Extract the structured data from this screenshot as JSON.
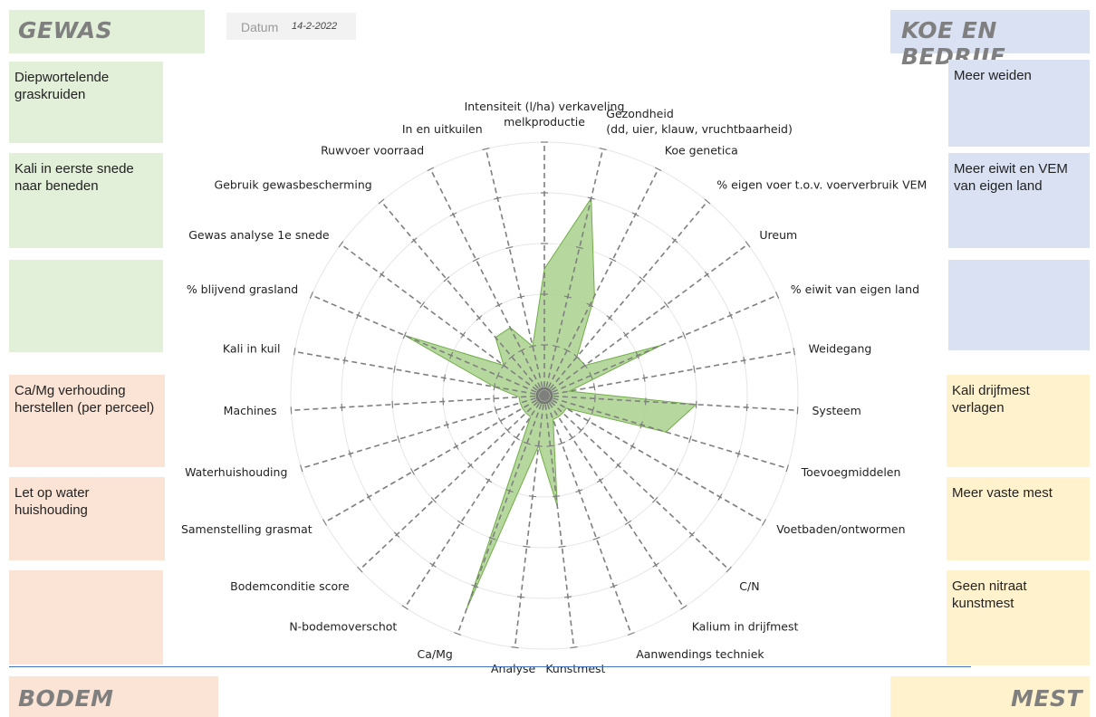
{
  "corners": {
    "gewas": "GEWAS",
    "koe": "KOE EN BEDRIJF",
    "bodem": "BODEM",
    "mest": "MEST"
  },
  "datum": {
    "label": "Datum",
    "value": "14-2-2022"
  },
  "gewas_notes": [
    "Diepwortelende graskruiden",
    "Kali in eerste snede naar beneden",
    ""
  ],
  "koe_notes": [
    "Meer weiden",
    "Meer eiwit en VEM van eigen land",
    ""
  ],
  "bodem_notes": [
    "Ca/Mg verhouding herstellen (per perceel)",
    "Let op water huishouding",
    ""
  ],
  "mest_notes": [
    "Kali drijfmest verlagen",
    "Meer vaste mest",
    "Geen nitraat kunstmest"
  ],
  "colors": {
    "fill": "#a9d18e",
    "stroke": "#70ad47",
    "spoke": "#7f7f7f",
    "ring": "#e6e6e6"
  },
  "chart_data": {
    "type": "radar",
    "max": 5,
    "grid": true,
    "axes": [
      [
        "Intensiteit (l/ha) verkaveling",
        "melkproductie"
      ],
      [
        "Gezondheid",
        "(dd, uier, klauw, vruchtbaarheid)"
      ],
      [
        "Koe genetica"
      ],
      [
        "% eigen voer t.o.v. voerverbruik VEM"
      ],
      [
        "Ureum"
      ],
      [
        "% eiwit van eigen land"
      ],
      [
        "Weidegang"
      ],
      [
        "Systeem"
      ],
      [
        "Toevoegmiddelen"
      ],
      [
        "Voetbaden/ontwormen"
      ],
      [
        "C/N"
      ],
      [
        "Kalium in drijfmest"
      ],
      [
        "Aanwendings techniek"
      ],
      [
        "Kunstmest"
      ],
      [
        "Analyse"
      ],
      [
        "Ca/Mg"
      ],
      [
        "N-bodemoverschot"
      ],
      [
        "Bodemconditie score"
      ],
      [
        "Samenstelling grasmat"
      ],
      [
        "Waterhuishouding"
      ],
      [
        "Machines"
      ],
      [
        "Kali in kuil"
      ],
      [
        "% blijvend grasland"
      ],
      [
        "Gewas analyse 1e snede"
      ],
      [
        "Gebruik gewasbescherming"
      ],
      [
        "Ruwvoer voorraad"
      ],
      [
        "In en uitkuilen"
      ]
    ],
    "values": [
      2.5,
      4.0,
      2.2,
      1.0,
      1.0,
      2.5,
      0.5,
      3.0,
      2.5,
      0.5,
      0.5,
      0.5,
      0.5,
      2.2,
      1.0,
      4.5,
      0.5,
      0.5,
      0.5,
      0.5,
      0.5,
      1.0,
      3.0,
      1.0,
      1.5,
      1.5,
      1.0
    ]
  }
}
